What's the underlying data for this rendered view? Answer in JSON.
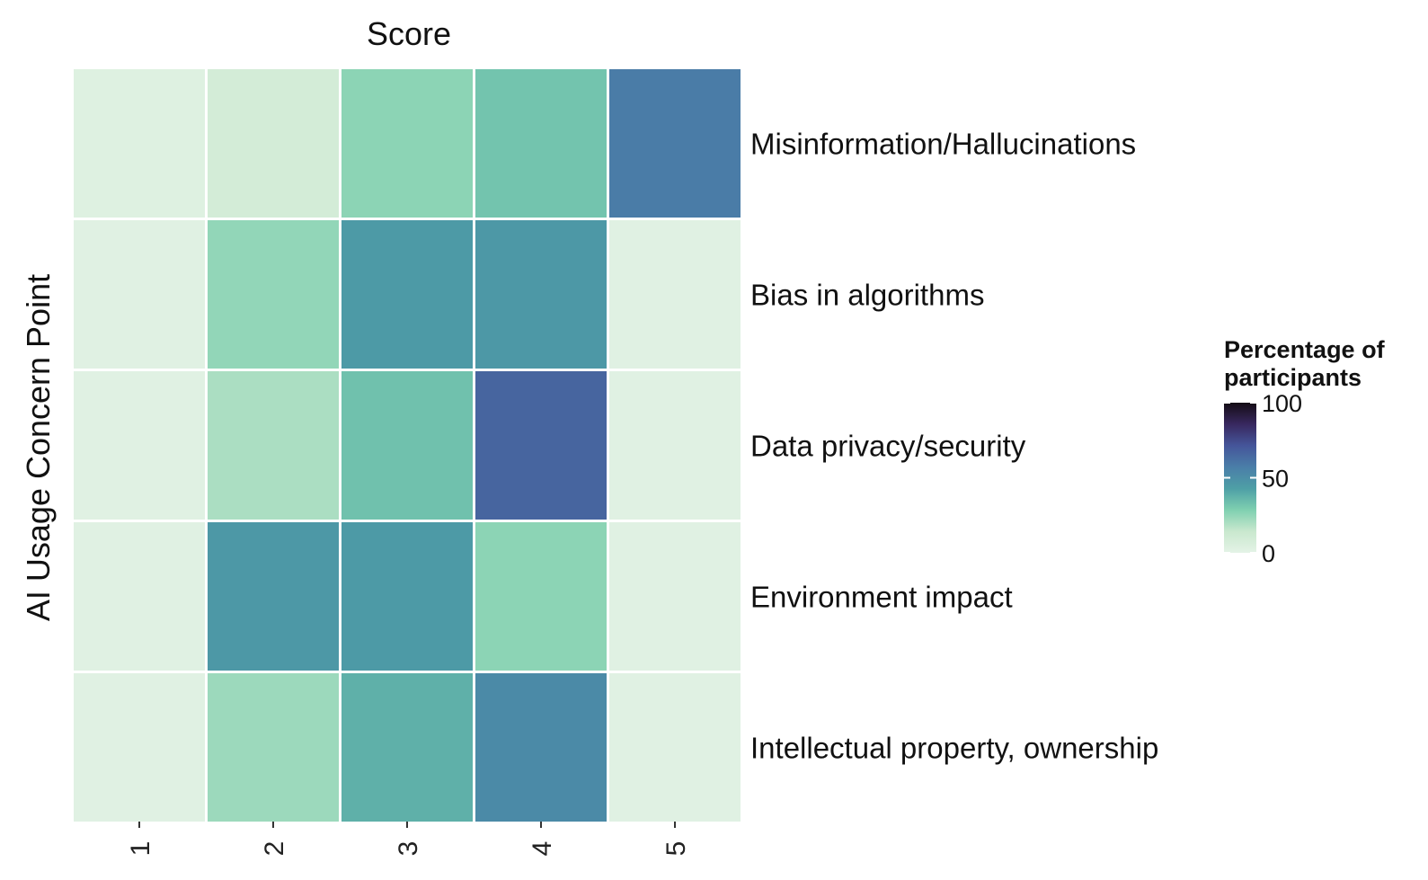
{
  "chart_data": {
    "type": "heatmap",
    "title": "Score",
    "xlabel": "Score",
    "ylabel": "AI Usage Concern Point",
    "x_categories": [
      "1",
      "2",
      "3",
      "4",
      "5"
    ],
    "y_categories": [
      "Misinformation/Hallucinations",
      "Bias in algorithms",
      "Data privacy/security",
      "Environment impact",
      "Intellectual property, ownership"
    ],
    "values": [
      [
        3,
        9,
        26,
        32,
        58
      ],
      [
        2,
        25,
        45,
        46,
        2
      ],
      [
        2,
        20,
        33,
        66,
        2
      ],
      [
        2,
        46,
        45,
        26,
        2
      ],
      [
        2,
        23,
        38,
        52,
        2
      ]
    ],
    "legend": {
      "title_lines": [
        "Percentage of",
        "participants"
      ],
      "ticks": [
        0,
        50,
        100
      ],
      "range": [
        0,
        100
      ],
      "placement": "right"
    },
    "colorscale": [
      "#e4f3e6",
      "#c9e8ce",
      "#7fd0b0",
      "#4e9fa6",
      "#4a7ea8",
      "#45559a",
      "#38285f",
      "#140c14"
    ],
    "grid": false
  }
}
